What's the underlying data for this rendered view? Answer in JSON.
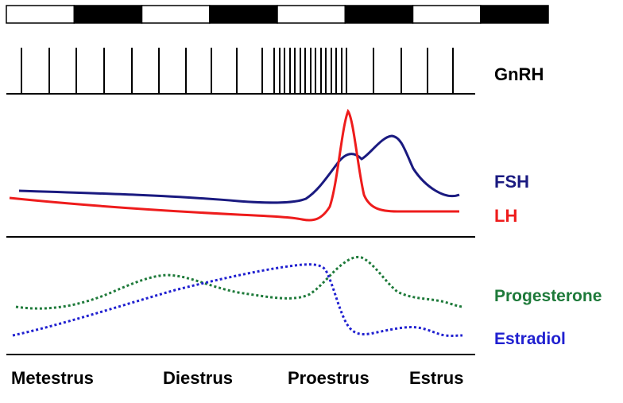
{
  "labels": {
    "gnrh": "GnRH",
    "fsh": "FSH",
    "lh": "LH",
    "progesterone": "Progesterone",
    "estradiol": "Estradiol"
  },
  "stages": [
    "Metestrus",
    "Diestrus",
    "Proestrus",
    "Estrus"
  ],
  "light_dark_bar": [
    "light",
    "dark",
    "light",
    "dark",
    "light",
    "dark",
    "light",
    "dark"
  ],
  "colors": {
    "fsh": "#1a1a80",
    "lh": "#ee1c1c",
    "progesterone": "#1e7a3a",
    "estradiol": "#2020d0",
    "text": "#000000"
  },
  "line_styles": {
    "fsh": "solid",
    "lh": "solid",
    "progesterone": "dotted",
    "estradiol": "dotted"
  }
}
